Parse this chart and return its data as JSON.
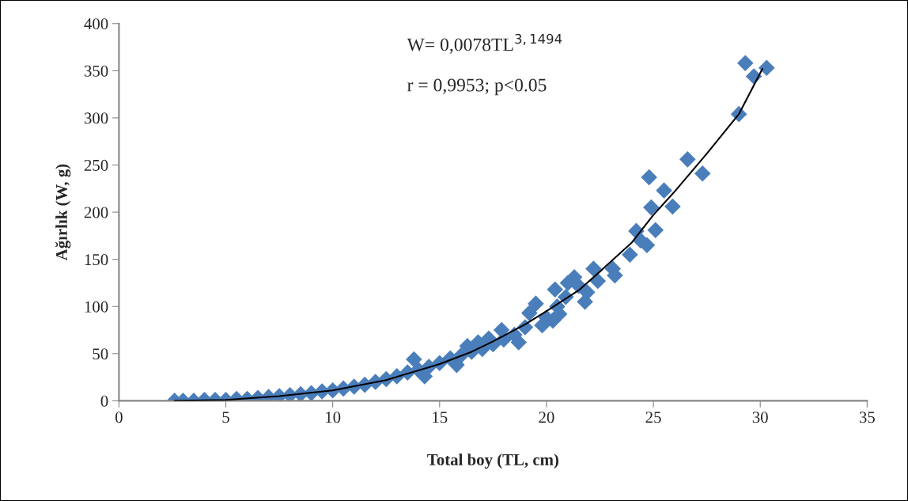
{
  "chart_data": {
    "type": "scatter",
    "xlabel": "Total boy (TL, cm)",
    "ylabel": "Ağırlık (W, g)",
    "annotations": [
      "W= 0,0078TL$^{3,1494}$",
      "r = 0,9953; p<0.05"
    ],
    "xlim": [
      0,
      35
    ],
    "xticks": [
      0,
      5,
      10,
      15,
      20,
      25,
      30,
      35
    ],
    "ylim": [
      0,
      400
    ],
    "yticks": [
      0,
      50,
      100,
      150,
      200,
      250,
      300,
      350,
      400
    ],
    "grid": false,
    "marker": "diamond",
    "series": [
      {
        "color": "#4a7ebb",
        "x": [
          2.6,
          3,
          3.5,
          4,
          4.5,
          5,
          5.5,
          6,
          6.5,
          7,
          7.5,
          8,
          8.5,
          9,
          9.5,
          10,
          10.5,
          11,
          11.5,
          12,
          12.5,
          13,
          13.5,
          13.8,
          14,
          14.3,
          14.5,
          15,
          15.5,
          15.8,
          16,
          16.3,
          16.5,
          16.8,
          17,
          17.3,
          17.5,
          17.9,
          18,
          18.5,
          18.7,
          19,
          19.2,
          19.5,
          19.8,
          20,
          20.4,
          20.3,
          20.5,
          20.6,
          20.9,
          21,
          21.3,
          21.5,
          21.8,
          21.9,
          22.2,
          22.4,
          23.9,
          23.1,
          23.2,
          24.2,
          24.4,
          24.7,
          24.8,
          24.9,
          25.1,
          25.5,
          25.9,
          26.6,
          27.3,
          29.0,
          29.3,
          29.7,
          30.3
        ],
        "values": [
          0,
          0,
          0,
          1,
          1,
          1,
          2,
          2,
          3,
          4,
          5,
          6,
          7,
          8,
          10,
          11,
          13,
          15,
          17,
          20,
          23,
          26,
          30,
          44,
          33,
          26,
          36,
          40,
          45,
          38,
          48,
          58,
          52,
          62,
          55,
          66,
          60,
          75,
          65,
          70,
          62,
          78,
          93,
          103,
          80,
          88,
          118,
          85,
          100,
          92,
          110,
          125,
          131,
          122,
          105,
          115,
          140,
          127,
          155,
          140,
          133,
          180,
          170,
          165,
          237,
          205,
          181,
          223,
          206,
          256,
          241,
          304,
          358,
          344,
          353
        ]
      },
      {
        "type": "line",
        "color": "#000000",
        "marker": "none",
        "x": [
          2.6,
          5,
          7.5,
          10,
          12.5,
          15,
          16.5,
          17.5,
          19,
          20,
          21.5,
          22.5,
          24,
          25,
          26,
          27.5,
          29,
          30.1
        ],
        "values": [
          0,
          1,
          5,
          11,
          22,
          39,
          52,
          63,
          81,
          95,
          117,
          137,
          168,
          197,
          222,
          262,
          304,
          352
        ]
      }
    ]
  }
}
